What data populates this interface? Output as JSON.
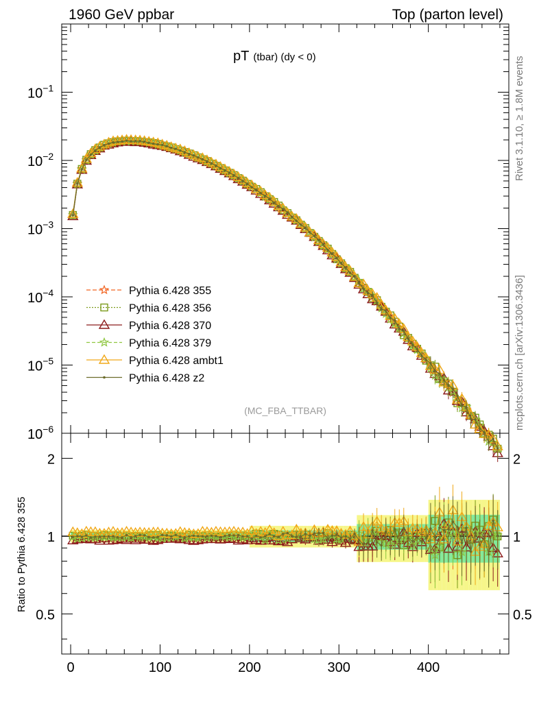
{
  "header": {
    "left": "1960 GeV ppbar",
    "right": "Top (parton level)"
  },
  "side": {
    "rivet": "Rivet 3.1.10, ≥ 1.8M events",
    "mcplots": "mcplots.cern.ch [arXiv:1306.3436]"
  },
  "main_title": {
    "main": "pT",
    "sub": "(tbar) (dy < 0)"
  },
  "analysis_label": "(MC_FBA_TTBAR)",
  "ratio_ylabel": "Ratio to Pythia 6.428 355",
  "colors": {
    "s355": "#f26522",
    "s356": "#7a9a1a",
    "s370": "#8b1a1a",
    "s379": "#8ec63f",
    "ambt1": "#f0a818",
    "z2": "#6b6b2a",
    "band_light": "#f6f68a",
    "band_dark": "#7fe89a"
  },
  "chart_data": [
    {
      "type": "line",
      "xlim": [
        -10,
        490
      ],
      "ylim": [
        1e-06,
        1
      ],
      "yscale": "log",
      "yticks": [
        {
          "v": 0.1,
          "base": "10",
          "exp": "−1"
        },
        {
          "v": 0.01,
          "base": "10",
          "exp": "−2"
        },
        {
          "v": 0.001,
          "base": "10",
          "exp": "−3"
        },
        {
          "v": 0.0001,
          "base": "10",
          "exp": "−4"
        },
        {
          "v": 1e-05,
          "base": "10",
          "exp": "−5"
        },
        {
          "v": 1e-06,
          "base": "10",
          "exp": "−6"
        }
      ],
      "legend_position": "lower-left",
      "series": [
        {
          "name": "Pythia 6.428 355",
          "key": "s355",
          "marker": "star",
          "dash": "6,3",
          "fac": 1.0
        },
        {
          "name": "Pythia 6.428 356",
          "key": "s356",
          "marker": "square",
          "dash": "2,2",
          "fac": 1.0
        },
        {
          "name": "Pythia 6.428 370",
          "key": "s370",
          "marker": "triangle",
          "dash": "",
          "fac": 0.97
        },
        {
          "name": "Pythia 6.428 379",
          "key": "s379",
          "marker": "star",
          "dash": "5,3",
          "fac": 0.99
        },
        {
          "name": "Pythia 6.428 ambt1",
          "key": "ambt1",
          "marker": "triangle",
          "dash": "",
          "fac": 1.03
        },
        {
          "name": "Pythia 6.428 z2",
          "key": "z2",
          "marker": "dot",
          "dash": "",
          "fac": 1.0
        }
      ],
      "x": [
        2.5,
        7.5,
        12.5,
        17.5,
        22.5,
        27.5,
        32.5,
        37.5,
        42.5,
        47.5,
        52.5,
        57.5,
        62.5,
        67.5,
        72.5,
        77.5,
        82.5,
        87.5,
        92.5,
        97.5,
        102.5,
        107.5,
        112.5,
        117.5,
        122.5,
        127.5,
        132.5,
        137.5,
        142.5,
        147.5,
        152.5,
        157.5,
        162.5,
        167.5,
        172.5,
        177.5,
        182.5,
        187.5,
        192.5,
        197.5,
        202.5,
        207.5,
        212.5,
        217.5,
        222.5,
        227.5,
        232.5,
        237.5,
        242.5,
        247.5,
        252.5,
        257.5,
        262.5,
        267.5,
        272.5,
        277.5,
        282.5,
        287.5,
        292.5,
        297.5,
        302.5,
        307.5,
        312.5,
        317.5,
        322.5,
        327.5,
        332.5,
        337.5,
        342.5,
        347.5,
        352.5,
        357.5,
        362.5,
        367.5,
        372.5,
        377.5,
        382.5,
        387.5,
        392.5,
        397.5,
        402.5,
        407.5,
        412.5,
        417.5,
        422.5,
        427.5,
        432.5,
        437.5,
        442.5,
        447.5,
        452.5,
        457.5,
        462.5,
        467.5,
        472.5,
        477.5
      ],
      "values_355": [
        0.00158,
        0.00458,
        0.00747,
        0.0101,
        0.0123,
        0.0141,
        0.0156,
        0.0168,
        0.0177,
        0.0184,
        0.0189,
        0.0192,
        0.0193,
        0.0193,
        0.0192,
        0.019,
        0.0187,
        0.0183,
        0.0178,
        0.0173,
        0.0167,
        0.0161,
        0.0154,
        0.0147,
        0.014,
        0.0133,
        0.0125,
        0.0118,
        0.0111,
        0.0104,
        0.00971,
        0.00904,
        0.00839,
        0.00776,
        0.00716,
        0.00658,
        0.00603,
        0.00551,
        0.00502,
        0.00456,
        0.00413,
        0.00373,
        0.00336,
        0.00302,
        0.0027,
        0.00241,
        0.00215,
        0.0019,
        0.00168,
        0.00149,
        0.00131,
        0.00115,
        0.00101,
        0.000878,
        0.000764,
        0.000663,
        0.000574,
        0.000496,
        0.000427,
        0.000367,
        0.000315,
        0.000269,
        0.00023,
        0.000196,
        0.000166,
        0.000141,
        0.00012,
        0.000101,
        8.52e-05,
        7.17e-05,
        6.03e-05,
        5.06e-05,
        4.24e-05,
        3.55e-05,
        2.97e-05,
        2.48e-05,
        2.07e-05,
        1.73e-05,
        1.44e-05,
        1.2e-05,
        9.96e-06,
        8.28e-06,
        6.88e-06,
        5.71e-06,
        4.74e-06,
        3.93e-06,
        3.26e-06,
        2.7e-06,
        2.24e-06,
        1.86e-06,
        1.54e-06,
        1.27e-06,
        1.05e-06,
        8.71e-07,
        7.2e-07,
        5.95e-07
      ]
    },
    {
      "type": "line",
      "ylabel": "Ratio to Pythia 6.428 355",
      "xlim": [
        -10,
        490
      ],
      "ylim": [
        0.35,
        2.5
      ],
      "yscale": "log",
      "yticks": [
        0.5,
        1,
        2
      ],
      "xticks": [
        0,
        100,
        200,
        300,
        400
      ]
    }
  ]
}
